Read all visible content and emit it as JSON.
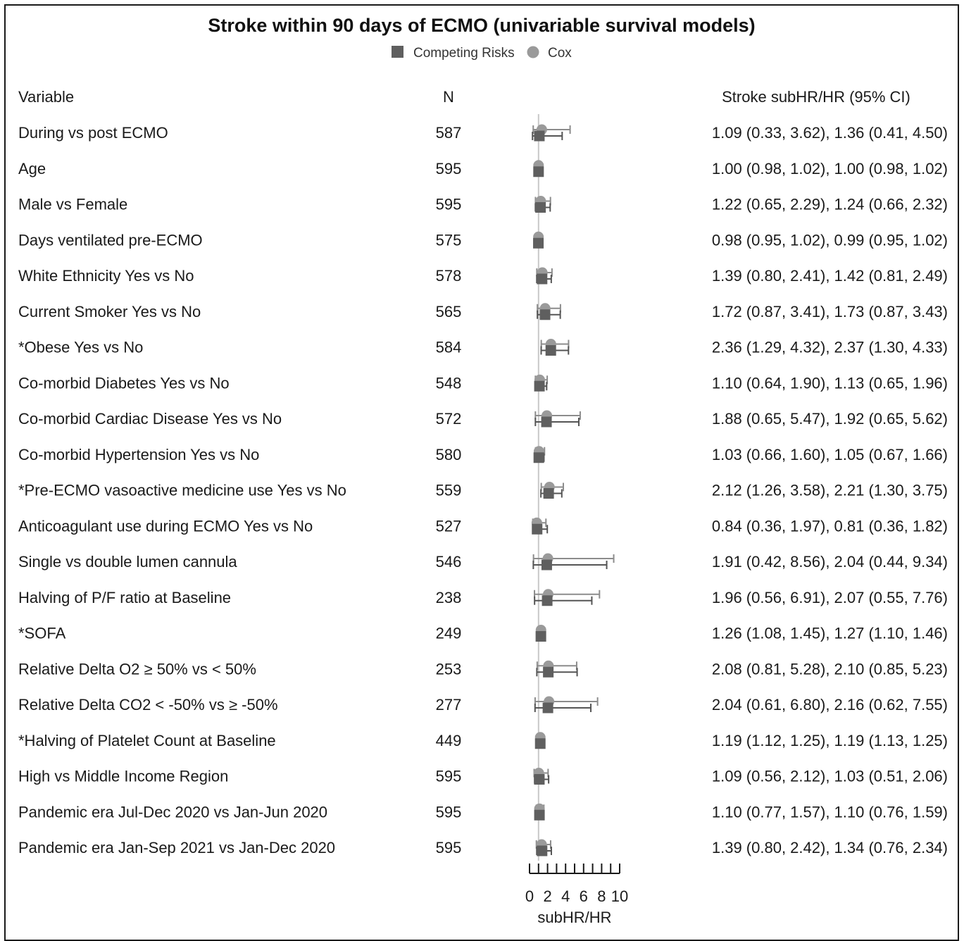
{
  "chart_data": {
    "type": "forest",
    "title": "Stroke within 90 days of ECMO (univariable survival models)",
    "legend": [
      {
        "name": "Competing Risks",
        "marker": "square",
        "color": "#5f5f5f"
      },
      {
        "name": "Cox",
        "marker": "circle",
        "color": "#9a9a9a"
      }
    ],
    "legend_position": "top-center",
    "headers": {
      "variable": "Variable",
      "n": "N",
      "estimate": "Stroke subHR/HR (95% CI)"
    },
    "xlabel": "subHR/HR",
    "xlim": [
      0,
      10
    ],
    "xticks": [
      0,
      2,
      4,
      6,
      8,
      10
    ],
    "reference_line": 1,
    "rows": [
      {
        "label": "During vs post ECMO",
        "n": "587",
        "text": "1.09 (0.33, 3.62), 1.36 (0.41, 4.50)",
        "cr": [
          1.09,
          0.33,
          3.62
        ],
        "cox": [
          1.36,
          0.41,
          4.5
        ]
      },
      {
        "label": "Age",
        "n": "595",
        "text": "1.00 (0.98, 1.02), 1.00 (0.98, 1.02)",
        "cr": [
          1.0,
          0.98,
          1.02
        ],
        "cox": [
          1.0,
          0.98,
          1.02
        ]
      },
      {
        "label": "Male vs Female",
        "n": "595",
        "text": "1.22 (0.65, 2.29), 1.24 (0.66, 2.32)",
        "cr": [
          1.22,
          0.65,
          2.29
        ],
        "cox": [
          1.24,
          0.66,
          2.32
        ]
      },
      {
        "label": "Days ventilated pre-ECMO",
        "n": "575",
        "text": "0.98 (0.95, 1.02), 0.99 (0.95, 1.02)",
        "cr": [
          0.98,
          0.95,
          1.02
        ],
        "cox": [
          0.99,
          0.95,
          1.02
        ]
      },
      {
        "label": "White Ethnicity Yes vs No",
        "n": "578",
        "text": "1.39 (0.80, 2.41), 1.42 (0.81, 2.49)",
        "cr": [
          1.39,
          0.8,
          2.41
        ],
        "cox": [
          1.42,
          0.81,
          2.49
        ]
      },
      {
        "label": "Current Smoker Yes vs No",
        "n": "565",
        "text": "1.72 (0.87, 3.41), 1.73 (0.87, 3.43)",
        "cr": [
          1.72,
          0.87,
          3.41
        ],
        "cox": [
          1.73,
          0.87,
          3.43
        ]
      },
      {
        "label": "*Obese Yes vs No",
        "n": "584",
        "text": "2.36 (1.29, 4.32), 2.37 (1.30, 4.33)",
        "cr": [
          2.36,
          1.29,
          4.32
        ],
        "cox": [
          2.37,
          1.3,
          4.33
        ]
      },
      {
        "label": "Co-morbid Diabetes Yes vs No",
        "n": "548",
        "text": "1.10 (0.64, 1.90), 1.13 (0.65, 1.96)",
        "cr": [
          1.1,
          0.64,
          1.9
        ],
        "cox": [
          1.13,
          0.65,
          1.96
        ]
      },
      {
        "label": "Co-morbid Cardiac Disease Yes vs No",
        "n": "572",
        "text": "1.88 (0.65, 5.47), 1.92 (0.65, 5.62)",
        "cr": [
          1.88,
          0.65,
          5.47
        ],
        "cox": [
          1.92,
          0.65,
          5.62
        ]
      },
      {
        "label": "Co-morbid Hypertension Yes vs No",
        "n": "580",
        "text": "1.03 (0.66, 1.60), 1.05 (0.67, 1.66)",
        "cr": [
          1.03,
          0.66,
          1.6
        ],
        "cox": [
          1.05,
          0.67,
          1.66
        ]
      },
      {
        "label": "*Pre-ECMO vasoactive medicine use Yes vs No",
        "n": "559",
        "text": "2.12 (1.26, 3.58), 2.21 (1.30, 3.75)",
        "cr": [
          2.12,
          1.26,
          3.58
        ],
        "cox": [
          2.21,
          1.3,
          3.75
        ]
      },
      {
        "label": "Anticoagulant use during ECMO Yes vs No",
        "n": "527",
        "text": "0.84 (0.36, 1.97), 0.81 (0.36, 1.82)",
        "cr": [
          0.84,
          0.36,
          1.97
        ],
        "cox": [
          0.81,
          0.36,
          1.82
        ]
      },
      {
        "label": "Single vs double lumen cannula",
        "n": "546",
        "text": "1.91 (0.42, 8.56), 2.04 (0.44, 9.34)",
        "cr": [
          1.91,
          0.42,
          8.56
        ],
        "cox": [
          2.04,
          0.44,
          9.34
        ]
      },
      {
        "label": "Halving of P/F ratio at Baseline",
        "n": "238",
        "text": "1.96 (0.56, 6.91), 2.07 (0.55, 7.76)",
        "cr": [
          1.96,
          0.56,
          6.91
        ],
        "cox": [
          2.07,
          0.55,
          7.76
        ]
      },
      {
        "label": "*SOFA",
        "n": "249",
        "text": "1.26 (1.08, 1.45), 1.27 (1.10, 1.46)",
        "cr": [
          1.26,
          1.08,
          1.45
        ],
        "cox": [
          1.27,
          1.1,
          1.46
        ]
      },
      {
        "label": "Relative Delta O2 ≥ 50% vs < 50%",
        "n": "253",
        "text": "2.08 (0.81, 5.28), 2.10 (0.85, 5.23)",
        "cr": [
          2.08,
          0.81,
          5.28
        ],
        "cox": [
          2.1,
          0.85,
          5.23
        ]
      },
      {
        "label": "Relative Delta CO2 < -50% vs ≥ -50%",
        "n": "277",
        "text": "2.04 (0.61, 6.80), 2.16 (0.62, 7.55)",
        "cr": [
          2.04,
          0.61,
          6.8
        ],
        "cox": [
          2.16,
          0.62,
          7.55
        ]
      },
      {
        "label": "*Halving of Platelet Count at Baseline",
        "n": "449",
        "text": "1.19 (1.12, 1.25), 1.19 (1.13, 1.25)",
        "cr": [
          1.19,
          1.12,
          1.25
        ],
        "cox": [
          1.19,
          1.13,
          1.25
        ]
      },
      {
        "label": "High vs Middle Income Region",
        "n": "595",
        "text": "1.09 (0.56, 2.12), 1.03 (0.51, 2.06)",
        "cr": [
          1.09,
          0.56,
          2.12
        ],
        "cox": [
          1.03,
          0.51,
          2.06
        ]
      },
      {
        "label": "Pandemic era Jul-Dec 2020 vs Jan-Jun 2020",
        "n": "595",
        "text": "1.10 (0.77, 1.57), 1.10 (0.76, 1.59)",
        "cr": [
          1.1,
          0.77,
          1.57
        ],
        "cox": [
          1.1,
          0.76,
          1.59
        ]
      },
      {
        "label": "Pandemic era Jan-Sep 2021 vs Jan-Dec 2020",
        "n": "595",
        "text": "1.39 (0.80, 2.42), 1.34 (0.76, 2.34)",
        "cr": [
          1.39,
          0.8,
          2.42
        ],
        "cox": [
          1.34,
          0.76,
          2.34
        ]
      }
    ]
  }
}
